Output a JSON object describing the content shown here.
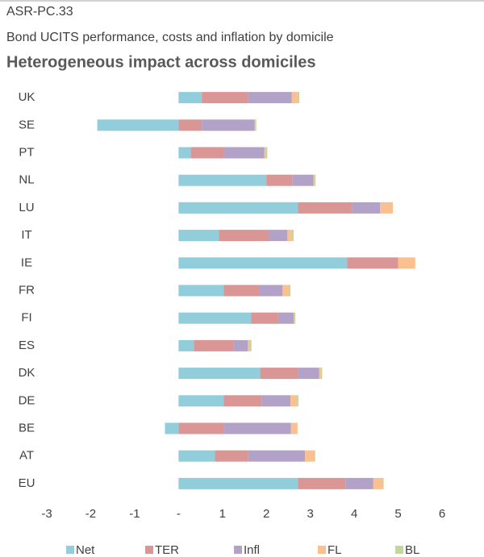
{
  "chart_data": {
    "type": "bar",
    "orientation": "horizontal",
    "stacked": true,
    "label": "ASR-PC.33",
    "subtitle": "Bond UCITS performance, costs and inflation by domicile",
    "title": "Heterogeneous impact across domiciles",
    "categories": [
      "UK",
      "SE",
      "PT",
      "NL",
      "LU",
      "IT",
      "IE",
      "FR",
      "FI",
      "ES",
      "DK",
      "DE",
      "BE",
      "AT",
      "EU"
    ],
    "series": [
      {
        "name": "Net",
        "color": "#92cddc",
        "values": [
          0.53,
          -1.85,
          0.28,
          2.0,
          2.72,
          0.92,
          3.84,
          1.03,
          1.65,
          0.35,
          1.86,
          1.03,
          -0.31,
          0.83,
          2.72
        ]
      },
      {
        "name": "TER",
        "color": "#da9694",
        "values": [
          1.05,
          0.53,
          0.75,
          0.59,
          1.23,
          1.14,
          1.16,
          0.81,
          0.62,
          0.9,
          0.86,
          0.86,
          1.03,
          0.75,
          1.08
        ]
      },
      {
        "name": "Infl",
        "color": "#b3a2c7",
        "values": [
          1.0,
          1.2,
          0.92,
          0.48,
          0.64,
          0.42,
          0,
          0.53,
          0.35,
          0.33,
          0.48,
          0.66,
          1.53,
          1.3,
          0.63
        ]
      },
      {
        "name": "FL",
        "color": "#fac090",
        "values": [
          0.13,
          0.02,
          0.02,
          0.02,
          0.29,
          0.09,
          0.39,
          0.15,
          0.01,
          0.04,
          0.03,
          0.15,
          0.15,
          0.2,
          0.22
        ]
      },
      {
        "name": "BL",
        "color": "#c3d69b",
        "values": [
          0.04,
          0.02,
          0.05,
          0.03,
          0,
          0.05,
          0,
          0.03,
          0.03,
          0.04,
          0.04,
          0.03,
          0,
          0.03,
          0.02
        ]
      }
    ],
    "xlim": [
      -3,
      6
    ],
    "xticks": [
      -3,
      -2,
      -1,
      {
        "value": 0,
        "label": "-"
      },
      1,
      2,
      3,
      4,
      5,
      6
    ],
    "legend": "bottom"
  }
}
